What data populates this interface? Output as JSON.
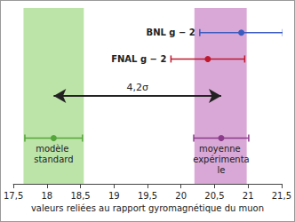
{
  "chart_data": {
    "type": "scatter",
    "xlabel": "valeurs reliées au rapport gyromagnétique du muon",
    "xlim": [
      17.5,
      21.5
    ],
    "xticks": [
      {
        "value": 17.5,
        "label": "17,5"
      },
      18,
      {
        "value": 18.5,
        "label": "18,5"
      },
      19,
      {
        "value": 19.5,
        "label": "19,5"
      },
      20,
      {
        "value": 20.5,
        "label": "20,5"
      },
      21,
      {
        "value": 21.5,
        "label": "21,5"
      }
    ],
    "tick_labels": "x",
    "series": [
      {
        "name": "BNL g − 2",
        "color": "#3a5bbf",
        "x": [
          20.9
        ],
        "errors": [
          0.62
        ]
      },
      {
        "name": "FNAL g − 2",
        "color": "#c0182e",
        "x": [
          20.4
        ],
        "errors": [
          0.55
        ]
      },
      {
        "name": "modèle standard",
        "color": "#55a63a",
        "x": [
          18.1
        ],
        "errors": [
          0.43
        ]
      },
      {
        "name": "moyenne expérimentale",
        "color": "#8b3a8c",
        "x": [
          20.6
        ],
        "errors": [
          0.41
        ]
      }
    ],
    "bands": [
      {
        "from": 17.65,
        "to": 18.55,
        "color": "#bde4a8"
      },
      {
        "from": 20.2,
        "to": 20.98,
        "color": "#d9a8d6"
      }
    ],
    "annotation": {
      "text": "4,2σ",
      "from": 18.1,
      "to": 20.6
    }
  }
}
